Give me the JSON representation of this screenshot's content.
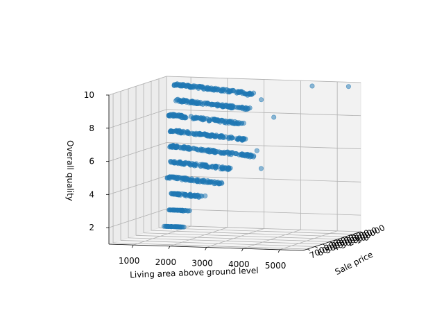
{
  "chart_data": {
    "type": "scatter",
    "projection": "3d",
    "xlabel": "Living area above ground level",
    "ylabel": "Sale price",
    "zlabel": "Overall quality",
    "x_ticks": [
      "1000",
      "2000",
      "3000",
      "4000",
      "5000"
    ],
    "y_ticks": [
      "0",
      "100000",
      "200000",
      "300000",
      "400000",
      "500000",
      "600000",
      "700000"
    ],
    "z_ticks": [
      "2",
      "4",
      "6",
      "8",
      "10"
    ],
    "xlim": [
      334,
      5642
    ],
    "ylim": [
      0,
      755000
    ],
    "zlim": [
      1,
      10
    ],
    "grid": true,
    "marker_color": "#1f77b4",
    "marker_alpha": 0.5,
    "quality_levels": [
      {
        "z": 1,
        "area_min": 334,
        "area_max": 900
      },
      {
        "z": 2,
        "area_min": 480,
        "area_max": 1050
      },
      {
        "z": 3,
        "area_min": 520,
        "area_max": 1600
      },
      {
        "z": 4,
        "area_min": 480,
        "area_max": 2300
      },
      {
        "z": 5,
        "area_min": 600,
        "area_max": 2700
      },
      {
        "z": 6,
        "area_min": 700,
        "area_max": 3600
      },
      {
        "z": 7,
        "area_min": 800,
        "area_max": 3400
      },
      {
        "z": 8,
        "area_min": 800,
        "area_max": 3300
      },
      {
        "z": 9,
        "area_min": 1100,
        "area_max": 3600
      },
      {
        "z": 10,
        "area_min": 1150,
        "area_max": 3900
      }
    ],
    "outliers": [
      {
        "x": 4476,
        "y": 745000,
        "z": 10
      },
      {
        "x": 5642,
        "y": 160000,
        "z": 10
      },
      {
        "x": 4700,
        "y": 185000,
        "z": 10
      },
      {
        "x": 3800,
        "y": 600000,
        "z": 10
      },
      {
        "x": 3600,
        "y": 160000,
        "z": 8
      },
      {
        "x": 3200,
        "y": 190000,
        "z": 6
      },
      {
        "x": 3400,
        "y": 230000,
        "z": 5
      }
    ]
  }
}
